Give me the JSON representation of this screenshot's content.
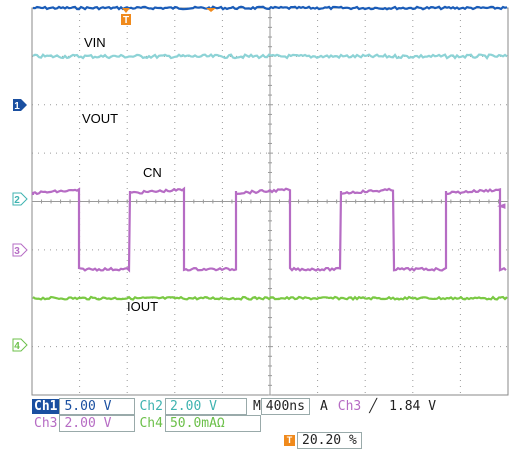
{
  "screen": {
    "trigger_position_marker": "T",
    "traces": [
      {
        "id": "ch1",
        "label": "VIN",
        "color": "#1a5cb8",
        "level_div": 4.0,
        "marker": "1",
        "marker_color": "#1a4fa0"
      },
      {
        "id": "ch2",
        "label": "VOUT",
        "color": "#8dd3d6",
        "level_div": 3.0,
        "marker": null
      },
      {
        "id": "ch3",
        "label": "CN",
        "color": "#b66cc4",
        "marker": "3",
        "marker_color": "#b66cc4",
        "waveform": "square",
        "high_div": 0.3,
        "low_div": -1.4
      },
      {
        "id": "ch4",
        "label": "IOUT",
        "color": "#7ac943",
        "level_div": -2.0,
        "marker": "4",
        "marker_color": "#6cc04a"
      }
    ],
    "channel2_marker": {
      "label": "2",
      "color": "#3fb3b0"
    },
    "trigger_level_marker": "◄"
  },
  "status": {
    "row1": {
      "ch1_name": "Ch1",
      "ch1_scale": "5.00 V",
      "ch2_name": "Ch2",
      "ch2_scale": "2.00 V",
      "timebase_label": "M",
      "timebase": "400ns",
      "trigger_mode": "A",
      "trigger_source": "Ch3",
      "trigger_slope": "╱",
      "trigger_level": "1.84 V"
    },
    "row2": {
      "ch3_name": "Ch3",
      "ch3_scale": "2.00 V",
      "ch4_name": "Ch4",
      "ch4_scale": "50.0mAΩ"
    },
    "row3": {
      "trigger_icon": "T",
      "trigger_position": "20.20 %"
    }
  }
}
